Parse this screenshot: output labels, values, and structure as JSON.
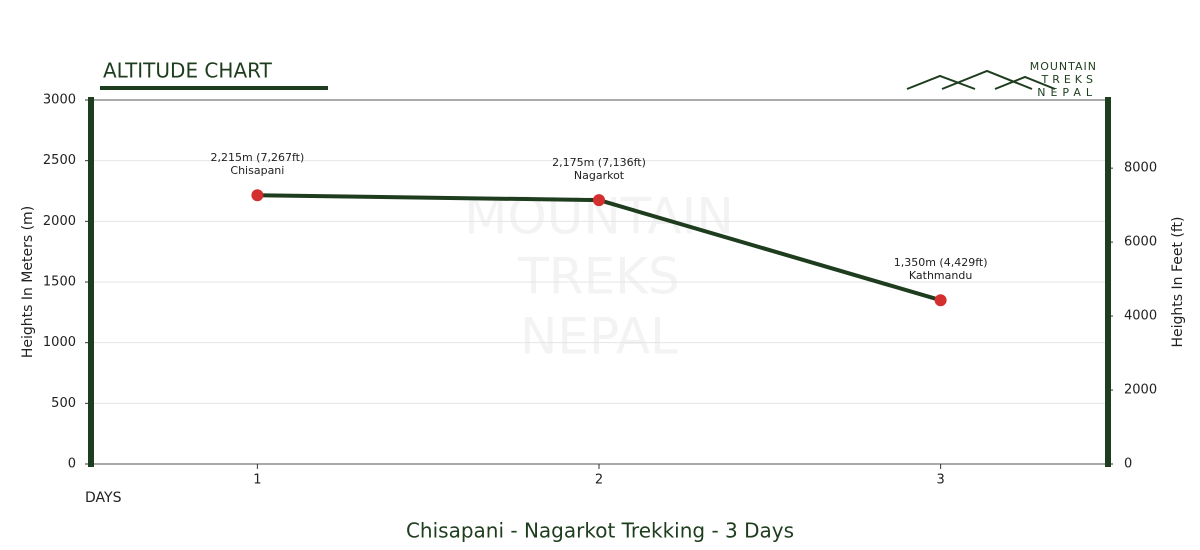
{
  "header": {
    "title": "ALTITUDE CHART",
    "logo": [
      "MOUNTAIN",
      "TREKS",
      "NEPAL"
    ]
  },
  "chart_data": {
    "type": "line",
    "title": "Chisapani - Nagarkot Trekking - 3 Days",
    "xlabel": "DAYS",
    "ylabel": "Heights In Meters (m)",
    "y2label": "Heights In Feet (ft)",
    "watermark": [
      "MOUNTAIN",
      "TREKS",
      "NEPAL"
    ],
    "x": [
      1,
      2,
      3
    ],
    "values": [
      2215,
      2175,
      1350
    ],
    "value_labels": [
      "2,215m (7,267ft)",
      "2,175m (7,136ft)",
      "1,350m (4,429ft)"
    ],
    "point_labels": [
      "Chisapani",
      "Nagarkot",
      "Kathmandu"
    ],
    "color": "#1e3d1e",
    "marker_color": "#d32f2f",
    "xlim": [
      0.51,
      3.49
    ],
    "xticks": [
      1,
      2,
      3
    ],
    "ylim": [
      0,
      3000
    ],
    "yticks": [
      0,
      500,
      1000,
      1500,
      2000,
      2500,
      3000
    ],
    "y2lim": [
      0,
      9843
    ],
    "y2ticks": [
      0,
      2000,
      4000,
      6000,
      8000
    ],
    "grid": true
  }
}
